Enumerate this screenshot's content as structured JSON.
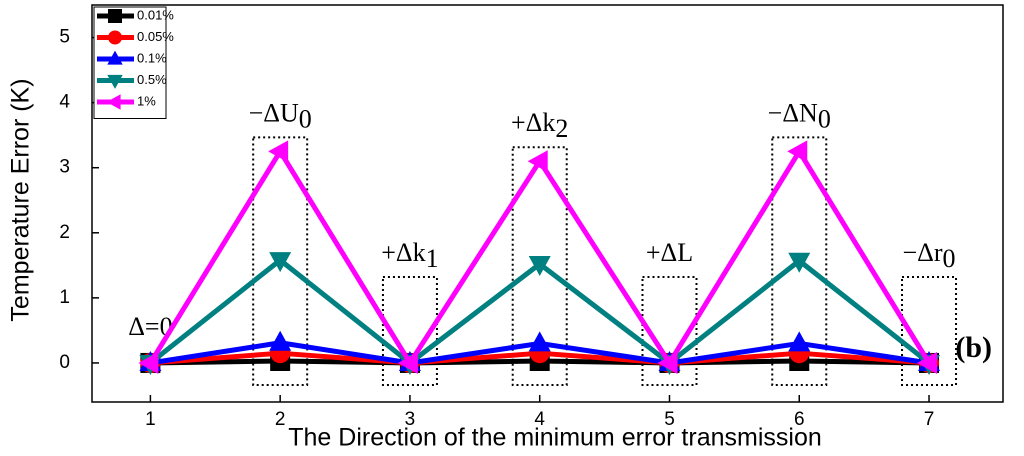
{
  "chart_data": {
    "type": "line",
    "x_label": "The Direction of the minimum error transmission",
    "y_label": "Temperature Error (K)",
    "x": [
      1,
      2,
      3,
      4,
      5,
      6,
      7
    ],
    "series": [
      {
        "name": "0.01%",
        "color": "#000000",
        "marker": "square",
        "values": [
          0,
          0.03,
          0,
          0.03,
          0,
          0.03,
          0
        ]
      },
      {
        "name": "0.05%",
        "color": "#ff0000",
        "marker": "circle",
        "values": [
          0,
          0.15,
          0,
          0.15,
          0,
          0.15,
          0
        ]
      },
      {
        "name": "0.1%",
        "color": "#0000ff",
        "marker": "triangle-up",
        "values": [
          0,
          0.31,
          0,
          0.3,
          0,
          0.3,
          0
        ]
      },
      {
        "name": "0.5%",
        "color": "#008080",
        "marker": "triangle-down",
        "values": [
          0,
          1.58,
          0,
          1.52,
          0,
          1.57,
          0
        ]
      },
      {
        "name": "1%",
        "color": "#ff00ff",
        "marker": "triangle-left",
        "values": [
          0,
          3.25,
          0,
          3.1,
          0,
          3.25,
          0
        ]
      }
    ],
    "annotations": [
      {
        "x": 1,
        "text": "Δ=0",
        "box": false
      },
      {
        "x": 2,
        "text": "−ΔU",
        "sub": "0",
        "box": true
      },
      {
        "x": 3,
        "text": "+Δk",
        "sub": "1",
        "box": true
      },
      {
        "x": 4,
        "text": "+Δk",
        "sub": "2",
        "box": true
      },
      {
        "x": 5,
        "text": "+ΔL",
        "box": true
      },
      {
        "x": 6,
        "text": "−ΔN",
        "sub": "0",
        "box": true
      },
      {
        "x": 7,
        "text": "−Δr",
        "sub": "0",
        "box": true
      }
    ],
    "panel_label": "(b)",
    "xlim": [
      0.55,
      7.57
    ],
    "ylim": [
      -0.6,
      5.5
    ],
    "xticks": [
      1,
      2,
      3,
      4,
      5,
      6,
      7
    ],
    "yticks": [
      0,
      1,
      2,
      3,
      4,
      5
    ],
    "legend": "upper left"
  }
}
